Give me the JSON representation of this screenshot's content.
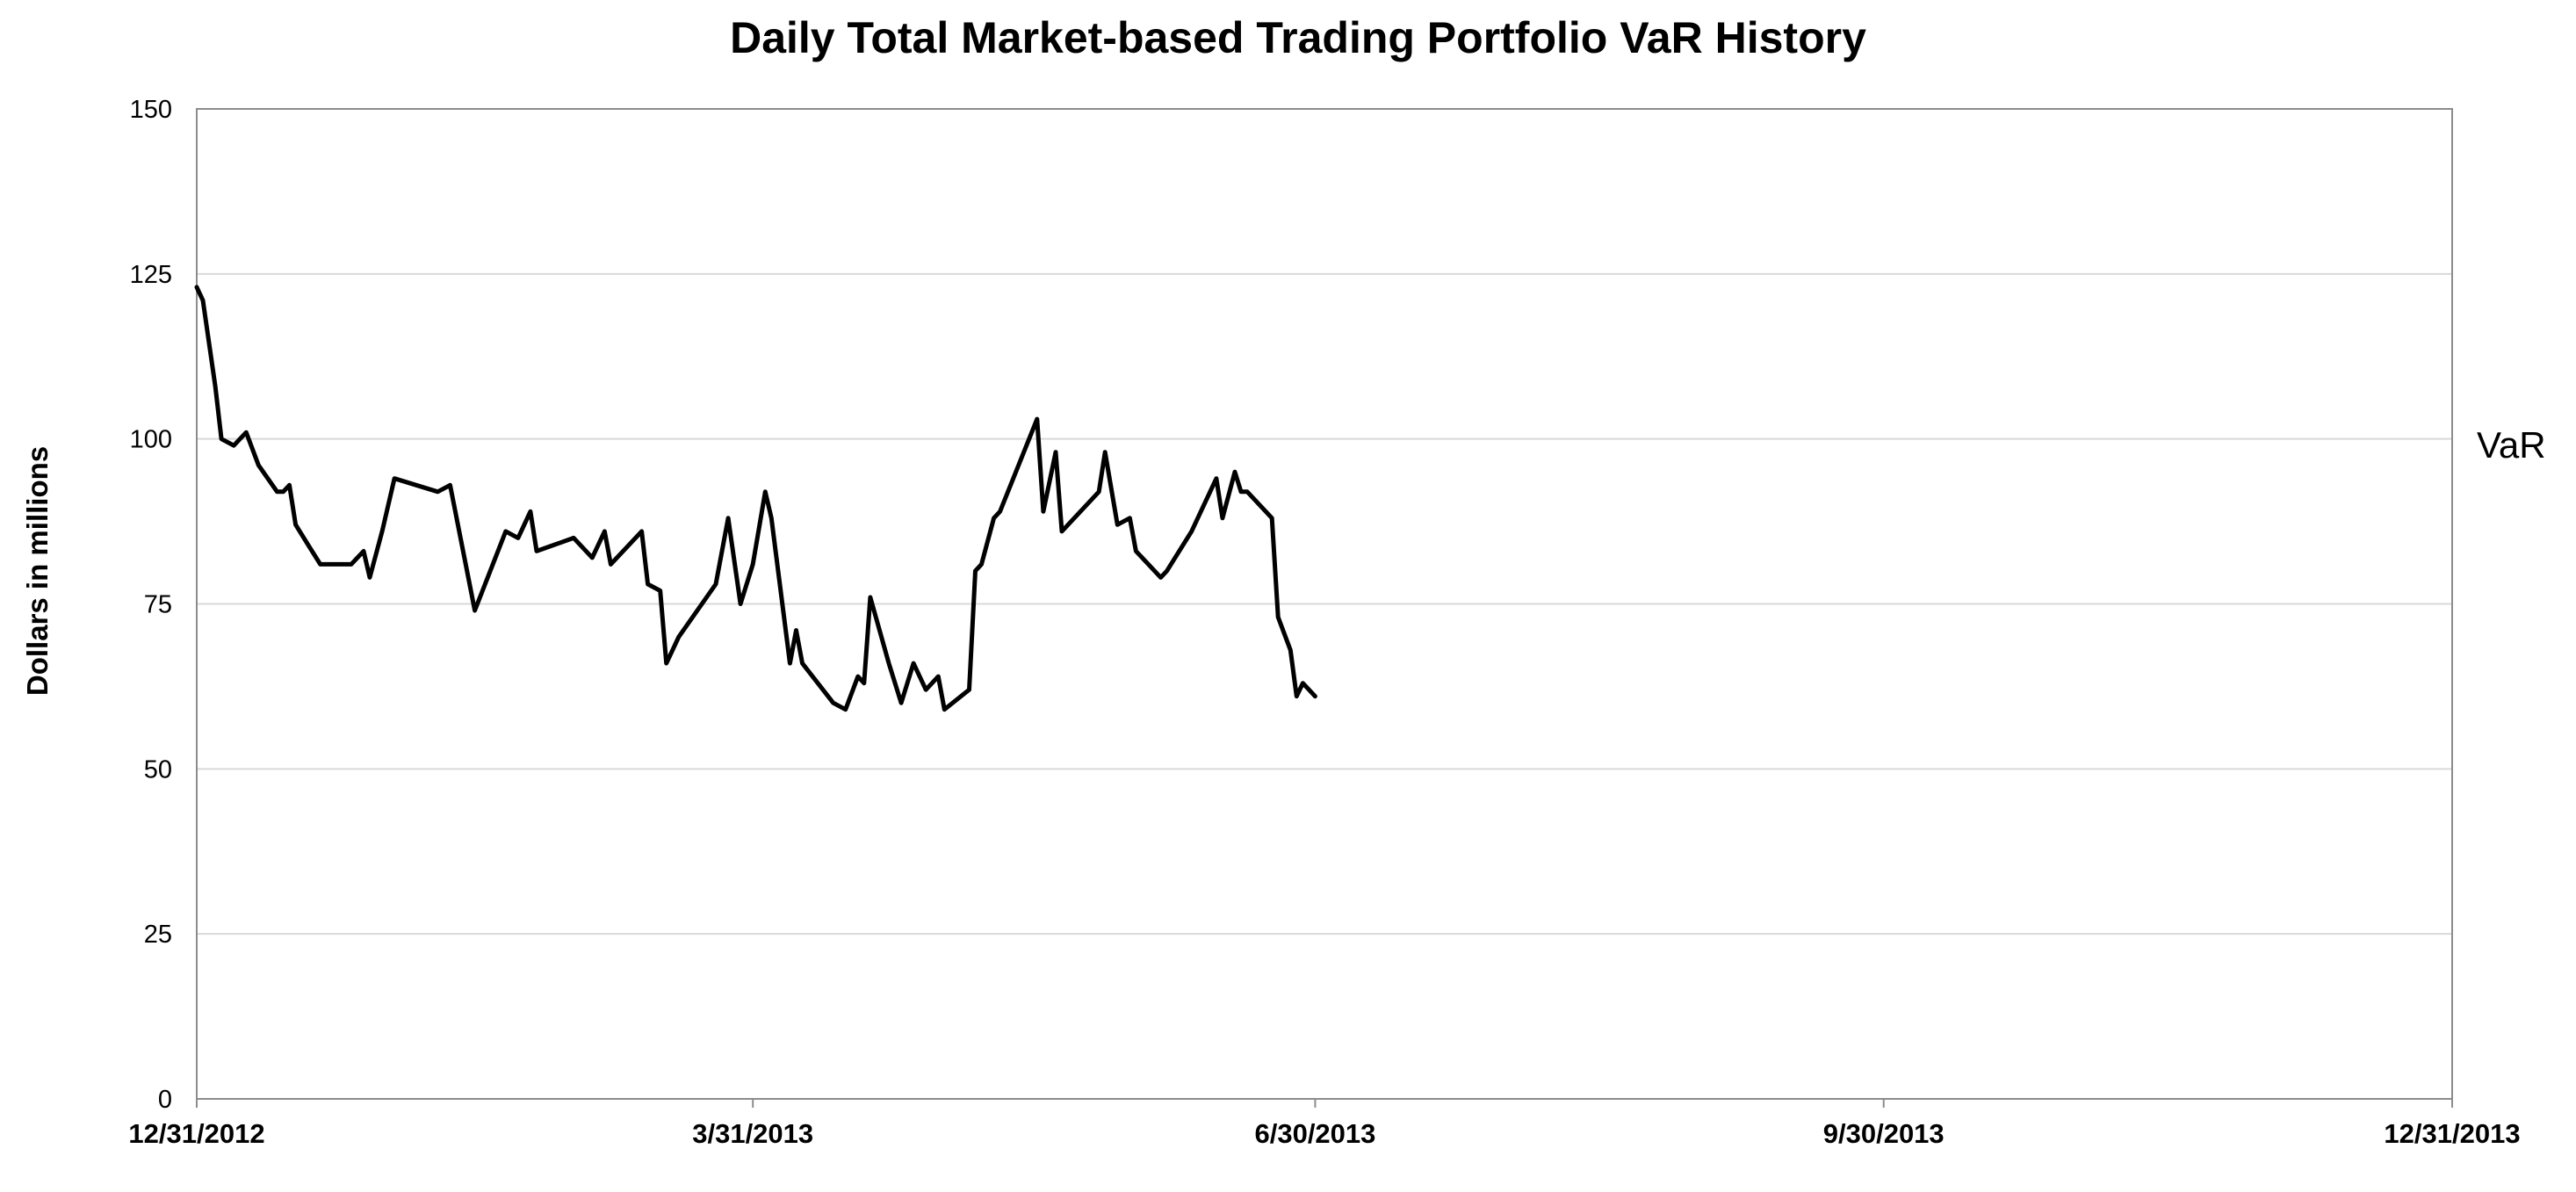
{
  "chart_data": {
    "type": "line",
    "title": "Daily Total Market-based Trading Portfolio VaR History",
    "ylabel": "Dollars in millions",
    "xlabel": "",
    "ylim": [
      0,
      150
    ],
    "yticks": [
      "0",
      "25",
      "50",
      "75",
      "100",
      "125",
      "150"
    ],
    "ytick_values": [
      0,
      25,
      50,
      75,
      100,
      125,
      150
    ],
    "xlim": [
      "2012-12-31",
      "2013-12-31"
    ],
    "xtick_labels": [
      "12/31/2012",
      "3/31/2013",
      "6/30/2013",
      "9/30/2013",
      "12/31/2013"
    ],
    "xtick_dates": [
      "2012-12-31",
      "2013-03-31",
      "2013-06-30",
      "2013-09-30",
      "2013-12-31"
    ],
    "grid": "horizontal",
    "series": [
      {
        "name": "VaR",
        "color": "#000000",
        "points": [
          [
            "2012-12-31",
            123
          ],
          [
            "2013-01-01",
            121
          ],
          [
            "2013-01-03",
            108
          ],
          [
            "2013-01-04",
            100
          ],
          [
            "2013-01-06",
            99
          ],
          [
            "2013-01-08",
            101
          ],
          [
            "2013-01-10",
            96
          ],
          [
            "2013-01-13",
            92
          ],
          [
            "2013-01-14",
            92
          ],
          [
            "2013-01-15",
            93
          ],
          [
            "2013-01-16",
            87
          ],
          [
            "2013-01-18",
            84
          ],
          [
            "2013-01-20",
            81
          ],
          [
            "2013-01-22",
            81
          ],
          [
            "2013-01-25",
            81
          ],
          [
            "2013-01-27",
            83
          ],
          [
            "2013-01-28",
            79
          ],
          [
            "2013-01-30",
            86
          ],
          [
            "2013-02-01",
            94
          ],
          [
            "2013-02-08",
            92
          ],
          [
            "2013-02-10",
            93
          ],
          [
            "2013-02-14",
            74
          ],
          [
            "2013-02-19",
            86
          ],
          [
            "2013-02-21",
            85
          ],
          [
            "2013-02-23",
            89
          ],
          [
            "2013-02-24",
            83
          ],
          [
            "2013-02-27",
            84
          ],
          [
            "2013-03-02",
            85
          ],
          [
            "2013-03-05",
            82
          ],
          [
            "2013-03-07",
            86
          ],
          [
            "2013-03-08",
            81
          ],
          [
            "2013-03-13",
            86
          ],
          [
            "2013-03-14",
            78
          ],
          [
            "2013-03-16",
            77
          ],
          [
            "2013-03-17",
            66
          ],
          [
            "2013-03-19",
            70
          ],
          [
            "2013-03-25",
            78
          ],
          [
            "2013-03-27",
            88
          ],
          [
            "2013-03-29",
            75
          ],
          [
            "2013-03-31",
            81
          ],
          [
            "2013-04-02",
            92
          ],
          [
            "2013-04-03",
            88
          ],
          [
            "2013-04-06",
            66
          ],
          [
            "2013-04-07",
            71
          ],
          [
            "2013-04-08",
            66
          ],
          [
            "2013-04-13",
            60
          ],
          [
            "2013-04-15",
            59
          ],
          [
            "2013-04-17",
            64
          ],
          [
            "2013-04-18",
            63
          ],
          [
            "2013-04-19",
            76
          ],
          [
            "2013-04-22",
            66
          ],
          [
            "2013-04-24",
            60
          ],
          [
            "2013-04-26",
            66
          ],
          [
            "2013-04-28",
            62
          ],
          [
            "2013-04-30",
            64
          ],
          [
            "2013-05-01",
            59
          ],
          [
            "2013-05-05",
            62
          ],
          [
            "2013-05-06",
            80
          ],
          [
            "2013-05-07",
            81
          ],
          [
            "2013-05-09",
            88
          ],
          [
            "2013-05-10",
            89
          ],
          [
            "2013-05-16",
            103
          ],
          [
            "2013-05-17",
            89
          ],
          [
            "2013-05-19",
            98
          ],
          [
            "2013-05-20",
            86
          ],
          [
            "2013-05-26",
            92
          ],
          [
            "2013-05-27",
            98
          ],
          [
            "2013-05-29",
            87
          ],
          [
            "2013-05-31",
            88
          ],
          [
            "2013-06-01",
            83
          ],
          [
            "2013-06-05",
            79
          ],
          [
            "2013-06-06",
            80
          ],
          [
            "2013-06-10",
            86
          ],
          [
            "2013-06-14",
            94
          ],
          [
            "2013-06-15",
            88
          ],
          [
            "2013-06-17",
            95
          ],
          [
            "2013-06-18",
            92
          ],
          [
            "2013-06-19",
            92
          ],
          [
            "2013-06-23",
            88
          ],
          [
            "2013-06-24",
            73
          ],
          [
            "2013-06-26",
            68
          ],
          [
            "2013-06-27",
            61
          ],
          [
            "2013-06-28",
            63
          ],
          [
            "2013-06-30",
            61
          ]
        ]
      }
    ],
    "series_label": "VaR",
    "series_label_value": 99
  }
}
